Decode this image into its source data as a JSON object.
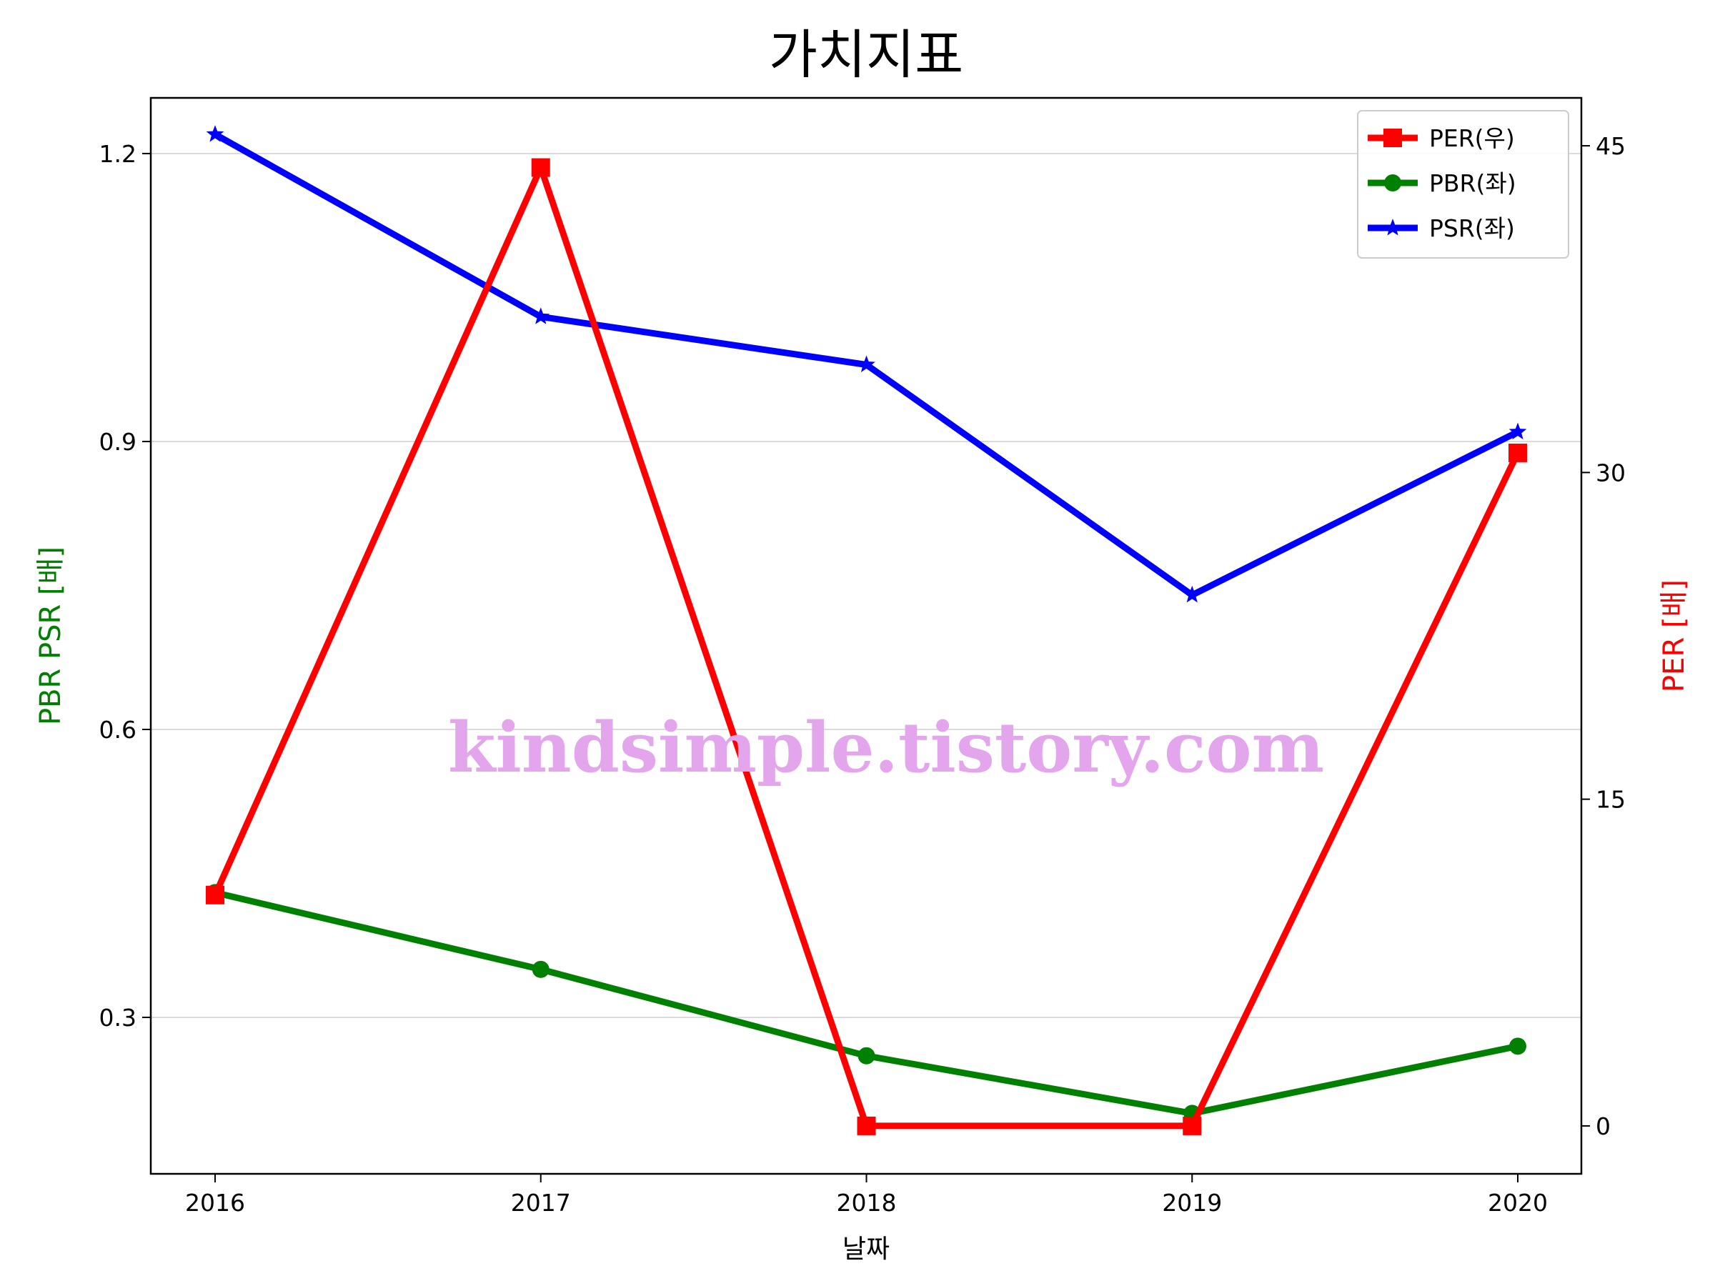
{
  "chart_data": {
    "type": "line",
    "title": "가치지표",
    "xlabel": "날짜",
    "ylabel_left": "PBR PSR [배]",
    "ylabel_right": "PER [배]",
    "categories": [
      "2016",
      "2017",
      "2018",
      "2019",
      "2020"
    ],
    "y_left": {
      "range": [
        0.137,
        1.258
      ],
      "ticks": [
        "0.3",
        "0.6",
        "0.9",
        "1.2"
      ],
      "grid": true
    },
    "y_right": {
      "range": [
        -2.2,
        47.2
      ],
      "ticks": [
        "0",
        "15",
        "30",
        "45"
      ]
    },
    "legend": {
      "position": "top-right",
      "entries": [
        "PER(우)",
        "PBR(좌)",
        "PSR(좌)"
      ]
    },
    "series": [
      {
        "name": "PER(우)",
        "axis": "right",
        "color": "#ff0000",
        "marker": "square",
        "values": [
          10.6,
          44.0,
          0.0,
          0.0,
          30.9
        ]
      },
      {
        "name": "PBR(좌)",
        "axis": "left",
        "color": "#008000",
        "marker": "circle",
        "values": [
          0.43,
          0.35,
          0.26,
          0.2,
          0.27
        ]
      },
      {
        "name": "PSR(좌)",
        "axis": "left",
        "color": "#0000ff",
        "marker": "star",
        "values": [
          1.22,
          1.03,
          0.98,
          0.74,
          0.91
        ]
      }
    ],
    "watermark": "kindsimple.tistory.com"
  }
}
